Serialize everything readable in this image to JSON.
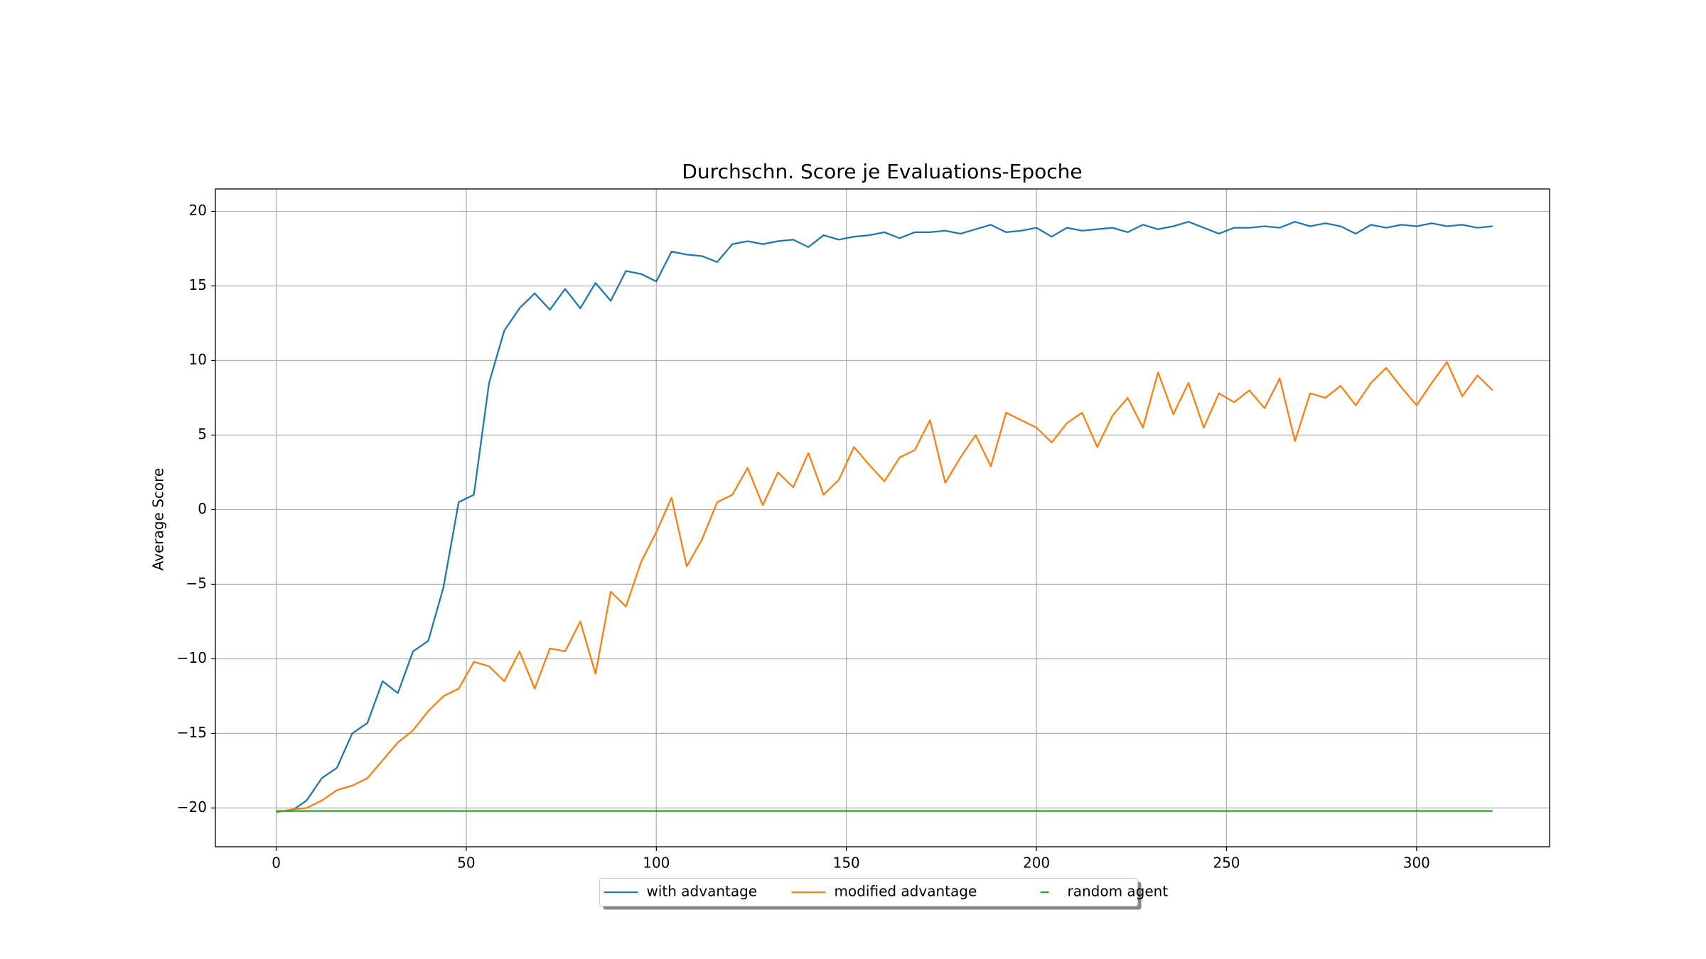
{
  "chart_data": {
    "type": "line",
    "title": "Durchschn. Score je Evaluations-Epoche",
    "ylabel": "Average Score",
    "x": [
      0,
      4,
      8,
      12,
      16,
      20,
      24,
      28,
      32,
      36,
      40,
      44,
      48,
      52,
      56,
      60,
      64,
      68,
      72,
      76,
      80,
      84,
      88,
      92,
      96,
      100,
      104,
      108,
      112,
      116,
      120,
      124,
      128,
      132,
      136,
      140,
      144,
      148,
      152,
      156,
      160,
      164,
      168,
      172,
      176,
      180,
      184,
      188,
      192,
      196,
      200,
      204,
      208,
      212,
      216,
      220,
      224,
      228,
      232,
      236,
      240,
      244,
      248,
      252,
      256,
      260,
      264,
      268,
      272,
      276,
      280,
      284,
      288,
      292,
      296,
      300,
      304,
      308,
      312,
      316,
      320
    ],
    "series": [
      {
        "name": "with advantage",
        "color": "#1f77b4",
        "values": [
          -20.2,
          -20.2,
          -19.5,
          -18,
          -17.3,
          -15,
          -14.3,
          -11.5,
          -12.3,
          -9.5,
          -8.8,
          -5.2,
          0.5,
          1,
          8.5,
          12,
          13.5,
          14.5,
          13.4,
          14.8,
          13.5,
          15.2,
          14,
          16,
          15.8,
          15.3,
          17.3,
          17.1,
          17,
          16.6,
          17.8,
          18,
          17.8,
          18,
          18.1,
          17.6,
          18.4,
          18.1,
          18.3,
          18.4,
          18.6,
          18.2,
          18.6,
          18.6,
          18.7,
          18.5,
          18.8,
          19.1,
          18.6,
          18.7,
          18.9,
          18.3,
          18.9,
          18.7,
          18.8,
          18.9,
          18.6,
          19.1,
          18.8,
          19,
          19.3,
          18.9,
          18.5,
          18.9,
          18.9,
          19,
          18.9,
          19.3,
          19,
          19.2,
          19,
          18.5,
          19.1,
          18.9,
          19.1,
          19,
          19.2,
          19,
          19.1,
          18.9,
          19.0
        ]
      },
      {
        "name": "modified advantage",
        "color": "#ff7f0e",
        "values": [
          -20.3,
          -20.1,
          -20,
          -19.5,
          -18.8,
          -18.5,
          -18,
          -16.8,
          -15.6,
          -14.8,
          -13.5,
          -12.5,
          -12,
          -10.2,
          -10.5,
          -11.5,
          -9.5,
          -12,
          -9.3,
          -9.5,
          -7.5,
          -11,
          -5.5,
          -6.5,
          -3.5,
          -1.5,
          0.8,
          -3.8,
          -2,
          0.5,
          1,
          2.8,
          0.3,
          2.5,
          1.5,
          3.8,
          1,
          2,
          4.2,
          3,
          1.9,
          3.5,
          4,
          6,
          1.8,
          3.5,
          5,
          2.9,
          6.5,
          6,
          5.5,
          4.5,
          5.8,
          6.5,
          4.2,
          6.3,
          7.5,
          5.5,
          9.2,
          6.4,
          8.5,
          5.5,
          7.8,
          7.2,
          8,
          6.8,
          8.8,
          4.6,
          7.8,
          7.5,
          8.3,
          7,
          8.5,
          9.5,
          8.2,
          7,
          8.5,
          9.9,
          7.6,
          9,
          8.0
        ]
      },
      {
        "name": "random agent",
        "color": "#2ca02c",
        "values": [
          -20.2,
          -20.2,
          -20.2,
          -20.2,
          -20.2,
          -20.2,
          -20.2,
          -20.2,
          -20.2,
          -20.2,
          -20.2,
          -20.2,
          -20.2,
          -20.2,
          -20.2,
          -20.2,
          -20.2,
          -20.2,
          -20.2,
          -20.2,
          -20.2,
          -20.2,
          -20.2,
          -20.2,
          -20.2,
          -20.2,
          -20.2,
          -20.2,
          -20.2,
          -20.2,
          -20.2,
          -20.2,
          -20.2,
          -20.2,
          -20.2,
          -20.2,
          -20.2,
          -20.2,
          -20.2,
          -20.2,
          -20.2,
          -20.2,
          -20.2,
          -20.2,
          -20.2,
          -20.2,
          -20.2,
          -20.2,
          -20.2,
          -20.2,
          -20.2,
          -20.2,
          -20.2,
          -20.2,
          -20.2,
          -20.2,
          -20.2,
          -20.2,
          -20.2,
          -20.2,
          -20.2,
          -20.2,
          -20.2,
          -20.2,
          -20.2,
          -20.2,
          -20.2,
          -20.2,
          -20.2,
          -20.2,
          -20.2,
          -20.2,
          -20.2,
          -20.2,
          -20.2,
          -20.2,
          -20.2,
          -20.2,
          -20.2,
          -20.2,
          -20.2
        ]
      }
    ],
    "xlim": [
      -16,
      335
    ],
    "ylim": [
      -22.6,
      21.5
    ],
    "xticks": [
      0,
      50,
      100,
      150,
      200,
      250,
      300
    ],
    "yticks": [
      {
        "value": -20,
        "label": "−20"
      },
      {
        "value": -15,
        "label": "−15"
      },
      {
        "value": -10,
        "label": "−10"
      },
      {
        "value": -5,
        "label": "−5"
      },
      0,
      5,
      10,
      15,
      20
    ],
    "grid": true,
    "legend": "bottom"
  }
}
